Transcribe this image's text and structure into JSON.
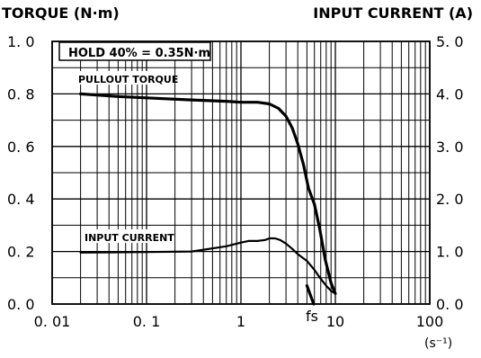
{
  "chart_data": {
    "type": "line",
    "x_scale": "log",
    "xlim": [
      0.01,
      100
    ],
    "ylim_left": [
      0,
      1.0
    ],
    "ylim_right": [
      0,
      5.0
    ],
    "grid": true,
    "left_axis_title": "TORQUE (N·m)",
    "right_axis_title": "INPUT CURRENT (A)",
    "x_unit_label": "(s⁻¹)",
    "hold_annotation": "HOLD 40% = 0.35N·m",
    "fs_label": "fs",
    "x_ticks": [
      {
        "value": 0.01,
        "label": "0. 01"
      },
      {
        "value": 0.1,
        "label": "0. 1"
      },
      {
        "value": 1,
        "label": "1"
      },
      {
        "value": 10,
        "label": "10"
      },
      {
        "value": 100,
        "label": "100"
      }
    ],
    "y_left_ticks": [
      {
        "value": 0.0,
        "label": "0. 0"
      },
      {
        "value": 0.2,
        "label": "0. 2"
      },
      {
        "value": 0.4,
        "label": "0. 4"
      },
      {
        "value": 0.6,
        "label": "0. 6"
      },
      {
        "value": 0.8,
        "label": "0. 8"
      },
      {
        "value": 1.0,
        "label": "1. 0"
      }
    ],
    "y_right_ticks": [
      {
        "value": 0.0,
        "label": "0. 0"
      },
      {
        "value": 1.0,
        "label": "1. 0"
      },
      {
        "value": 2.0,
        "label": "2. 0"
      },
      {
        "value": 3.0,
        "label": "3. 0"
      },
      {
        "value": 4.0,
        "label": "4. 0"
      },
      {
        "value": 5.0,
        "label": "5. 0"
      }
    ],
    "series": [
      {
        "name": "PULLOUT TORQUE",
        "axis": "left",
        "x": [
          0.02,
          0.05,
          0.1,
          0.3,
          0.7,
          1.0,
          1.5,
          2.0,
          2.5,
          3.0,
          3.5,
          4.0,
          4.6,
          5.2,
          6.0,
          6.8,
          7.8,
          9.0,
          10.0
        ],
        "y": [
          0.8,
          0.79,
          0.785,
          0.777,
          0.772,
          0.768,
          0.768,
          0.762,
          0.745,
          0.715,
          0.67,
          0.61,
          0.53,
          0.44,
          0.38,
          0.29,
          0.17,
          0.08,
          0.04
        ]
      },
      {
        "name": "INPUT CURRENT",
        "axis": "right",
        "x": [
          0.02,
          0.1,
          0.3,
          0.7,
          1.0,
          1.2,
          1.5,
          1.8,
          2.0,
          2.3,
          2.6,
          3.0,
          3.5,
          4.0,
          5.0,
          6.0,
          7.0,
          8.0,
          9.0,
          10.0
        ],
        "y": [
          0.98,
          0.99,
          1.0,
          1.1,
          1.17,
          1.2,
          1.2,
          1.22,
          1.25,
          1.25,
          1.22,
          1.15,
          1.05,
          0.95,
          0.82,
          0.65,
          0.48,
          0.35,
          0.25,
          0.2
        ]
      }
    ],
    "fs_segment": {
      "x": [
        5.0,
        5.9
      ],
      "y_left": [
        0.07,
        0.0
      ]
    },
    "colors": {
      "line": "#000000",
      "grid": "#000000",
      "background": "#ffffff"
    }
  }
}
